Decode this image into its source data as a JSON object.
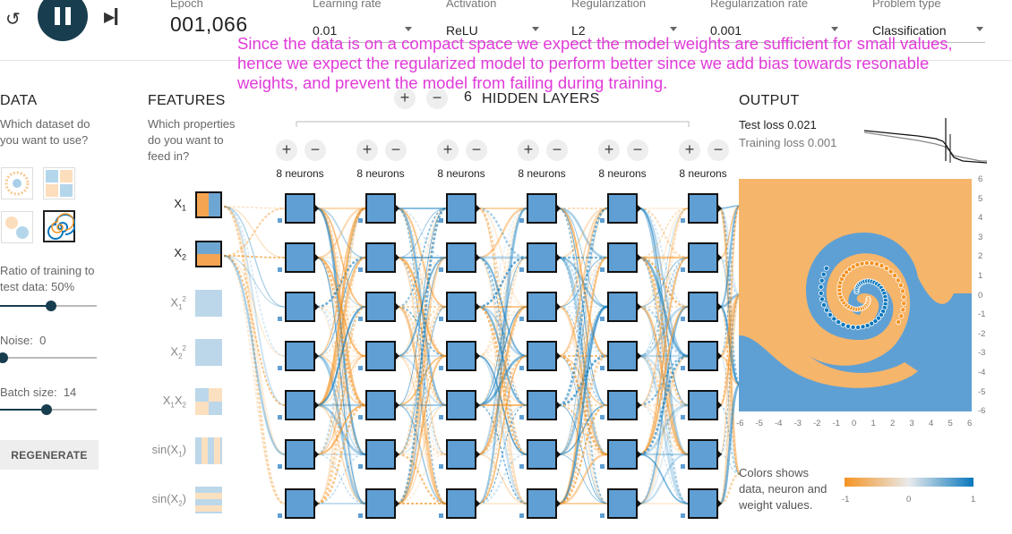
{
  "header": {
    "epoch_label": "Epoch",
    "epoch_value": "001,066",
    "learning_rate_label": "Learning rate",
    "learning_rate": "0.01",
    "activation_label": "Activation",
    "activation": "ReLU",
    "regularization_label": "Regularization",
    "regularization": "L2",
    "regularization_rate_label": "Regularization rate",
    "regularization_rate": "0.001",
    "problem_type_label": "Problem type",
    "problem_type": "Classification"
  },
  "annotation": "Since the data is on a compact space we expect the model weights are sufficient for small values, hence we expect the regularized model to perform better since we add bias towards resonable weights, and prevent the model from failing during training.",
  "data": {
    "title": "DATA",
    "question": "Which dataset do you want to use?",
    "ratio_label": "Ratio of training to test data:",
    "ratio_value": "50%",
    "ratio_level": 0.5,
    "noise_label": "Noise:",
    "noise_value": "0",
    "noise_level": 0,
    "batch_label": "Batch size:",
    "batch_value": "14",
    "batch_level": 0.45,
    "regenerate_label": "REGENERATE"
  },
  "features": {
    "title": "FEATURES",
    "question": "Which properties do you want to feed in?"
  },
  "network": {
    "hidden_layers_count": "6",
    "hidden_layers_label": "HIDDEN LAYERS",
    "plus": "+",
    "minus": "−",
    "neurons_caption": "8 neurons"
  },
  "output": {
    "title": "OUTPUT",
    "test_loss": "Test loss 0.021",
    "training_loss": "Training loss 0.001",
    "legend_text": "Colors shows data, neuron and weight values.",
    "legend_min": "-1",
    "legend_mid": "0",
    "legend_max": "1",
    "x_ticks": [
      "-6",
      "-5",
      "-4",
      "-3",
      "-2",
      "-1",
      "0",
      "1",
      "2",
      "3",
      "4",
      "5",
      "6"
    ],
    "y_ticks": [
      "6",
      "5",
      "4",
      "3",
      "2",
      "1",
      "0",
      "-1",
      "-2",
      "-3",
      "-4",
      "-5",
      "-6"
    ]
  },
  "colors": {
    "orange": "#f59322",
    "blue": "#0877bd",
    "node": "#5f9fd4",
    "dark": "#183d4e",
    "annotation": "#e03ad8"
  }
}
